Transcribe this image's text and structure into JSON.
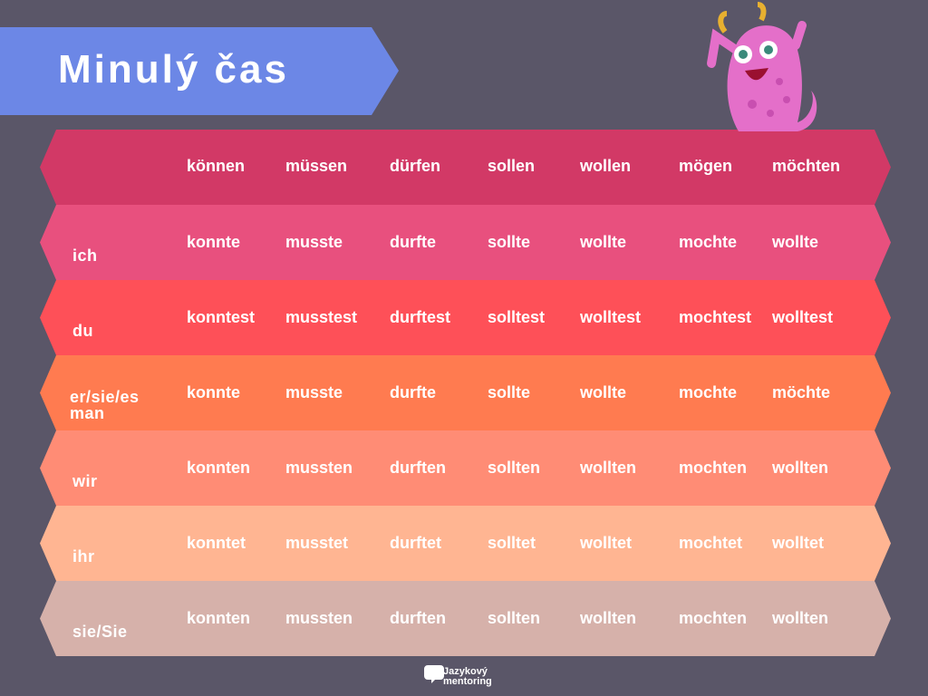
{
  "title": "Minulý čas",
  "table": {
    "header": [
      "können",
      "müssen",
      "dürfen",
      "sollen",
      "wollen",
      "mögen",
      "möchten"
    ],
    "rows": [
      {
        "pronoun": "ich",
        "forms": [
          "konnte",
          "musste",
          "durfte",
          "sollte",
          "wollte",
          "mochte",
          "wollte"
        ]
      },
      {
        "pronoun": "du",
        "forms": [
          "konntest",
          "musstest",
          "durftest",
          "solltest",
          "wolltest",
          "mochtest",
          "wolltest"
        ]
      },
      {
        "pronoun": "er/sie/es man",
        "forms": [
          "konnte",
          "musste",
          "durfte",
          "sollte",
          "wollte",
          "mochte",
          "möchte"
        ]
      },
      {
        "pronoun": "wir",
        "forms": [
          "konnten",
          "mussten",
          "durften",
          "sollten",
          "wollten",
          "mochten",
          "wollten"
        ]
      },
      {
        "pronoun": "ihr",
        "forms": [
          "konntet",
          "musstet",
          "durftet",
          "solltet",
          "wolltet",
          "mochtet",
          "wolltet"
        ]
      },
      {
        "pronoun": "sie/Sie",
        "forms": [
          "konnten",
          "mussten",
          "durften",
          "sollten",
          "wollten",
          "mochten",
          "wollten"
        ]
      }
    ]
  },
  "footer": {
    "brand_line1": "Jazykový",
    "brand_line2": "mentoring"
  }
}
